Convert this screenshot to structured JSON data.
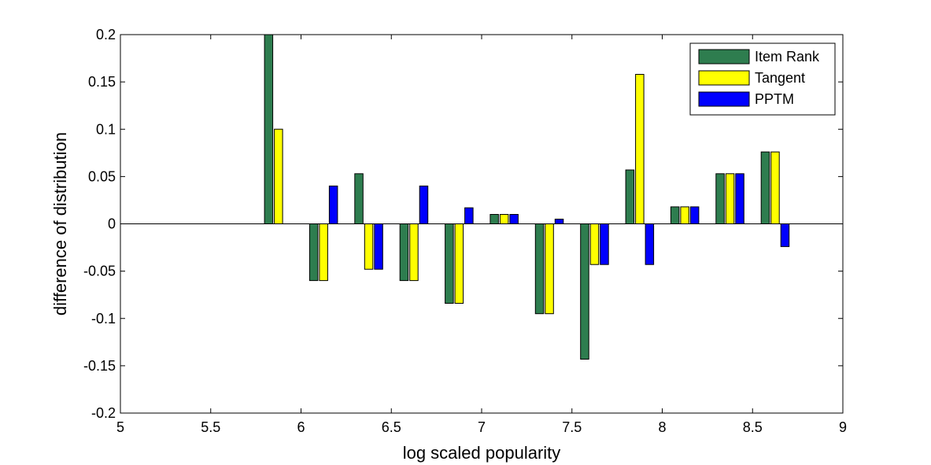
{
  "chart_data": {
    "type": "bar",
    "title": "",
    "xlabel": "log scaled popularity",
    "ylabel": "difference of distribution",
    "xlim": [
      5,
      9
    ],
    "ylim": [
      -0.2,
      0.2
    ],
    "x_ticks": [
      "5",
      "5.5",
      "6",
      "6.5",
      "7",
      "7.5",
      "8",
      "8.5",
      "9"
    ],
    "y_ticks": [
      "0.2",
      "0.15",
      "0.1",
      "0.05",
      "0",
      "-0.05",
      "-0.1",
      "-0.15",
      "-0.2"
    ],
    "x_tick_values": [
      5,
      5.5,
      6,
      6.5,
      7,
      7.5,
      8,
      8.5,
      9
    ],
    "y_tick_values": [
      0.2,
      0.15,
      0.1,
      0.05,
      0,
      -0.05,
      -0.1,
      -0.15,
      -0.2
    ],
    "grid": false,
    "legend_position": "top-right",
    "x": [
      5.875,
      6.125,
      6.375,
      6.625,
      6.875,
      7.125,
      7.375,
      7.625,
      7.875,
      8.125,
      8.375,
      8.625
    ],
    "series": [
      {
        "name": "Item Rank",
        "color": "#2e7d4f",
        "values": [
          0.2,
          -0.06,
          0.053,
          -0.06,
          -0.084,
          0.01,
          -0.095,
          -0.143,
          0.057,
          0.018,
          0.053,
          0.076
        ]
      },
      {
        "name": "Tangent",
        "color": "#ffff00",
        "values": [
          0.1,
          -0.06,
          -0.048,
          -0.06,
          -0.084,
          0.01,
          -0.095,
          -0.043,
          0.158,
          0.018,
          0.053,
          0.076
        ]
      },
      {
        "name": "PPTM",
        "color": "#0000ff",
        "values": [
          0,
          0.04,
          -0.048,
          0.04,
          0.017,
          0.01,
          0.005,
          -0.043,
          -0.043,
          0.018,
          0.053,
          -0.024
        ]
      }
    ]
  }
}
